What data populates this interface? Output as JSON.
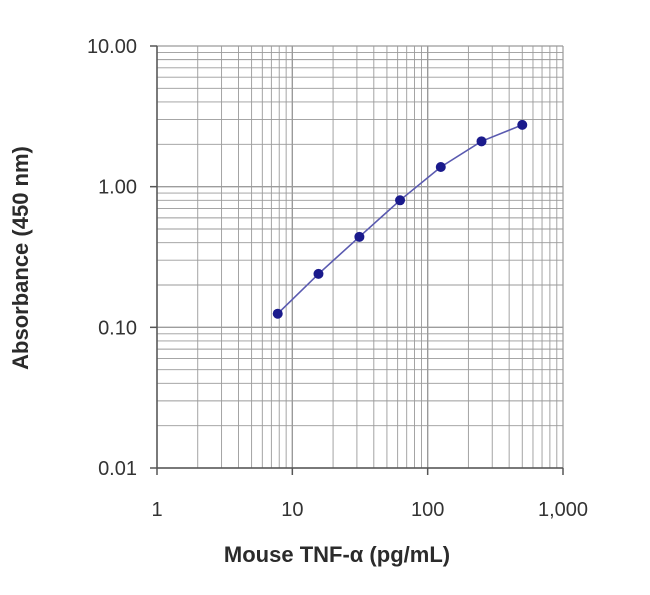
{
  "chart_data": {
    "type": "scatter",
    "xlabel": "Mouse TNF-α (pg/mL)",
    "ylabel": "Absorbance (450 nm)",
    "x_scale": "log",
    "y_scale": "log",
    "xlim": [
      1,
      1000
    ],
    "ylim": [
      0.01,
      10
    ],
    "x_tick_labels": [
      "1",
      "10",
      "100",
      "1,000"
    ],
    "y_tick_labels": [
      "10.00",
      "1.00",
      "0.10",
      "0.01"
    ],
    "grid": true,
    "connected": true,
    "colors": {
      "series": "#1a1a8c",
      "line": "#5a5ab0",
      "grid": "#9a9a9a",
      "axis": "#555555"
    },
    "series": [
      {
        "x": [
          7.8,
          15.6,
          31.3,
          62.5,
          125,
          250,
          500
        ],
        "y": [
          0.125,
          0.24,
          0.44,
          0.8,
          1.38,
          2.1,
          2.75
        ]
      }
    ]
  }
}
